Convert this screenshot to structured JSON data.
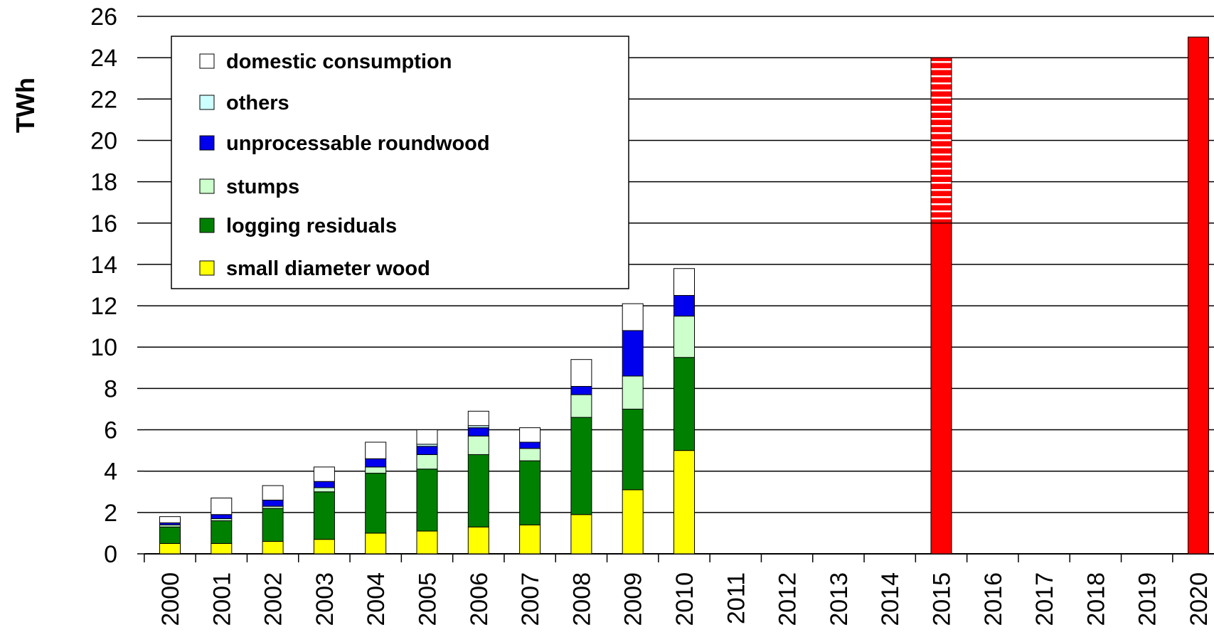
{
  "chart_data": {
    "type": "bar",
    "stacked": true,
    "title": "",
    "xlabel": "",
    "ylabel": "TWh",
    "ylim": [
      0,
      26
    ],
    "yticks": [
      0,
      2,
      4,
      6,
      8,
      10,
      12,
      14,
      16,
      18,
      20,
      22,
      24,
      26
    ],
    "grid": true,
    "legend_position": "top-left",
    "categories": [
      "2000",
      "2001",
      "2002",
      "2003",
      "2004",
      "2005",
      "2006",
      "2007",
      "2008",
      "2009",
      "2010",
      "2011",
      "2012",
      "2013",
      "2014",
      "2015",
      "2016",
      "2017",
      "2018",
      "2019",
      "2020"
    ],
    "series": [
      {
        "name": "small diameter wood",
        "color": "#ffff00",
        "values": [
          0.5,
          0.5,
          0.6,
          0.7,
          1.0,
          1.1,
          1.3,
          1.4,
          1.9,
          3.1,
          5.0,
          0,
          0,
          0,
          0,
          0,
          0,
          0,
          0,
          0,
          0
        ]
      },
      {
        "name": "logging residuals",
        "color": "#008000",
        "values": [
          0.8,
          1.1,
          1.6,
          2.3,
          2.9,
          3.0,
          3.5,
          3.1,
          4.7,
          3.9,
          4.5,
          0,
          0,
          0,
          0,
          0,
          0,
          0,
          0,
          0,
          0
        ]
      },
      {
        "name": "stumps",
        "color": "#ccffcc",
        "values": [
          0.1,
          0.1,
          0.1,
          0.2,
          0.3,
          0.7,
          0.9,
          0.6,
          1.1,
          1.6,
          2.0,
          0,
          0,
          0,
          0,
          0,
          0,
          0,
          0,
          0,
          0
        ]
      },
      {
        "name": "unprocessable roundwood",
        "color": "#0000ee",
        "values": [
          0.1,
          0.2,
          0.3,
          0.3,
          0.4,
          0.4,
          0.4,
          0.3,
          0.4,
          2.2,
          1.0,
          0,
          0,
          0,
          0,
          0,
          0,
          0,
          0,
          0,
          0
        ]
      },
      {
        "name": "others",
        "color": "#ccffff",
        "values": [
          0,
          0,
          0,
          0,
          0,
          0.1,
          0.1,
          0,
          0,
          0,
          0,
          0,
          0,
          0,
          0,
          0,
          0,
          0,
          0,
          0,
          0
        ]
      },
      {
        "name": "domestic consumption",
        "color": "#ffffff",
        "values": [
          0.3,
          0.8,
          0.7,
          0.7,
          0.8,
          0.7,
          0.7,
          0.7,
          1.3,
          1.3,
          1.3,
          0,
          0,
          0,
          0,
          0,
          0,
          0,
          0,
          0,
          0
        ]
      }
    ],
    "targets": [
      {
        "category": "2015",
        "solid": 16,
        "hatched_to": 24,
        "color": "#ff0000"
      },
      {
        "category": "2020",
        "solid": 25,
        "color": "#ff0000"
      }
    ],
    "legend_order": [
      "domestic consumption",
      "others",
      "unprocessable roundwood",
      "stumps",
      "logging residuals",
      "small diameter wood"
    ]
  }
}
